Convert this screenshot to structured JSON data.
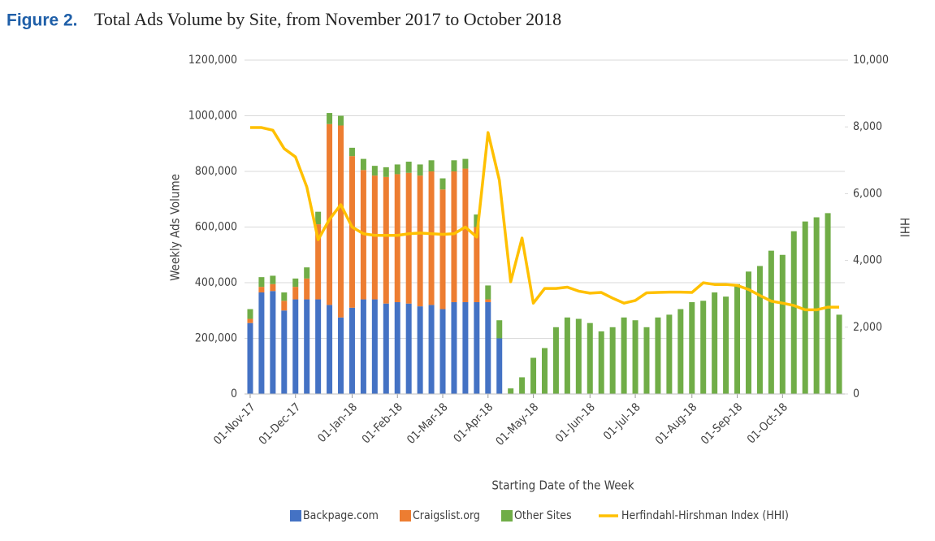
{
  "figure_label": "Figure 2.",
  "chart_data": {
    "type": "bar",
    "title": "Total Ads Volume by Site, from November 2017 to October 2018",
    "x_label": "Starting Date of the Week",
    "y_label": "Weekly Ads Volume",
    "y2_label": "HHI",
    "stacked": true,
    "grid": true,
    "legend": "bottom",
    "categories": [
      "01-Nov-17",
      null,
      null,
      null,
      "01-Dec-17",
      null,
      null,
      null,
      null,
      "01-Jan-18",
      null,
      null,
      null,
      "01-Feb-18",
      null,
      null,
      null,
      "01-Mar-18",
      null,
      null,
      null,
      "01-Apr-18",
      null,
      null,
      null,
      "01-May-18",
      null,
      null,
      null,
      null,
      "01-Jun-18",
      null,
      null,
      null,
      "01-Jul-18",
      null,
      null,
      null,
      null,
      "01-Aug-18",
      null,
      null,
      null,
      "01-Sep-18",
      null,
      null,
      null,
      "01-Oct-18",
      null,
      null,
      null,
      null,
      null
    ],
    "series": [
      {
        "name": "Backpage.com",
        "color": "#4472c4",
        "values": [
          255000,
          365000,
          370000,
          300000,
          340000,
          340000,
          340000,
          320000,
          275000,
          310000,
          340000,
          340000,
          325000,
          330000,
          325000,
          315000,
          320000,
          305000,
          330000,
          330000,
          330000,
          330000,
          200000,
          0,
          0,
          0,
          0,
          0,
          0,
          0,
          0,
          0,
          0,
          0,
          0,
          0,
          0,
          0,
          0,
          0,
          0,
          0,
          0,
          0,
          0,
          0,
          0,
          0,
          0,
          0,
          0,
          0,
          0
        ]
      },
      {
        "name": "Craigslist.org",
        "color": "#ed7d31",
        "values": [
          15000,
          20000,
          25000,
          35000,
          45000,
          75000,
          270000,
          650000,
          690000,
          545000,
          465000,
          445000,
          455000,
          460000,
          470000,
          470000,
          480000,
          430000,
          470000,
          480000,
          270000,
          10000,
          0,
          0,
          0,
          0,
          0,
          0,
          0,
          0,
          0,
          0,
          0,
          0,
          0,
          0,
          0,
          0,
          0,
          0,
          0,
          0,
          0,
          0,
          0,
          0,
          0,
          0,
          0,
          0,
          0,
          0,
          0
        ]
      },
      {
        "name": "Other Sites",
        "color": "#70ad47",
        "values": [
          35000,
          35000,
          30000,
          30000,
          30000,
          40000,
          45000,
          40000,
          35000,
          30000,
          40000,
          35000,
          35000,
          35000,
          40000,
          40000,
          40000,
          40000,
          40000,
          35000,
          45000,
          50000,
          65000,
          20000,
          60000,
          130000,
          165000,
          240000,
          275000,
          270000,
          255000,
          225000,
          240000,
          275000,
          265000,
          240000,
          275000,
          285000,
          305000,
          330000,
          335000,
          365000,
          350000,
          395000,
          440000,
          460000,
          515000,
          500000,
          585000,
          620000,
          635000,
          650000,
          285000
        ]
      },
      {
        "name": "Herfindahl-Hirshman Index (HHI)",
        "color": "#ffc000",
        "type": "line",
        "axis": "y2",
        "values": [
          7980,
          7980,
          7900,
          7350,
          7100,
          6200,
          4620,
          5230,
          5670,
          5000,
          4800,
          4750,
          4750,
          4750,
          4800,
          4820,
          4800,
          4780,
          4800,
          5000,
          4700,
          7830,
          6400,
          3360,
          4670,
          2720,
          3160,
          3160,
          3200,
          3080,
          3020,
          3040,
          2870,
          2720,
          2800,
          3030,
          3040,
          3050,
          3050,
          3040,
          3330,
          3280,
          3280,
          3250,
          3130,
          2950,
          2780,
          2720,
          2650,
          2520,
          2520,
          2600,
          2600
        ]
      }
    ],
    "ylim": [
      0,
      1200000
    ],
    "yticks": [
      0,
      {
        "value": 200000,
        "label": "200,000"
      },
      {
        "value": 400000,
        "label": "400,000"
      },
      {
        "value": 600000,
        "label": "600,000"
      },
      {
        "value": 800000,
        "label": "800,000"
      },
      {
        "value": 1000000,
        "label": "1000,000"
      },
      {
        "value": 1200000,
        "label": "1200,000"
      }
    ],
    "y2lim": [
      0,
      10000
    ],
    "y2ticks": [
      0,
      {
        "value": 2000,
        "label": "2,000"
      },
      {
        "value": 4000,
        "label": "4,000"
      },
      {
        "value": 6000,
        "label": "6,000"
      },
      {
        "value": 8000,
        "label": "8,000"
      },
      {
        "value": 10000,
        "label": "10,000"
      }
    ]
  }
}
